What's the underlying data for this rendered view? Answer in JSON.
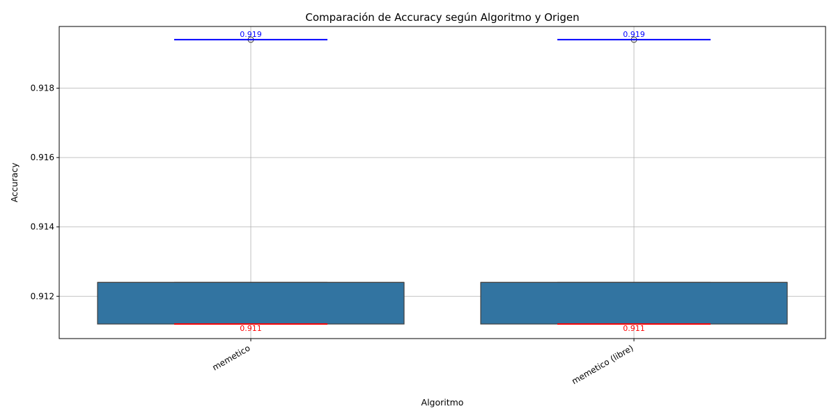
{
  "chart_data": {
    "type": "box",
    "title": "Comparación de Accuracy según Algoritmo y Origen",
    "xlabel": "Algoritmo",
    "ylabel": "Accuracy",
    "ylim": [
      0.91078,
      0.91978
    ],
    "yticks": [
      0.912,
      0.914,
      0.916,
      0.918
    ],
    "ytick_labels": [
      "0.912",
      "0.914",
      "0.916",
      "0.918"
    ],
    "grid": true,
    "categories": [
      "memetico",
      "memetico (libre)"
    ],
    "boxes": [
      {
        "category": "memetico",
        "min": 0.9112,
        "q1": 0.9112,
        "median": 0.9124,
        "q3": 0.9124,
        "whisker_low": 0.9112,
        "whisker_high": 0.9124,
        "outliers": [
          0.9194
        ],
        "max_label": "0.919",
        "min_label": "0.911",
        "max_value": 0.9194,
        "min_value": 0.9112
      },
      {
        "category": "memetico (libre)",
        "min": 0.9112,
        "q1": 0.9112,
        "median": 0.9124,
        "q3": 0.9124,
        "whisker_low": 0.9112,
        "whisker_high": 0.9124,
        "outliers": [
          0.9194
        ],
        "max_label": "0.919",
        "min_label": "0.911",
        "max_value": 0.9194,
        "min_value": 0.9112
      }
    ],
    "colors": {
      "box_fill": "#3274a1",
      "box_edge": "#3f3f3f",
      "max_line": "#0000ff",
      "min_line": "#ff0000",
      "grid": "#b0b0b0"
    }
  }
}
